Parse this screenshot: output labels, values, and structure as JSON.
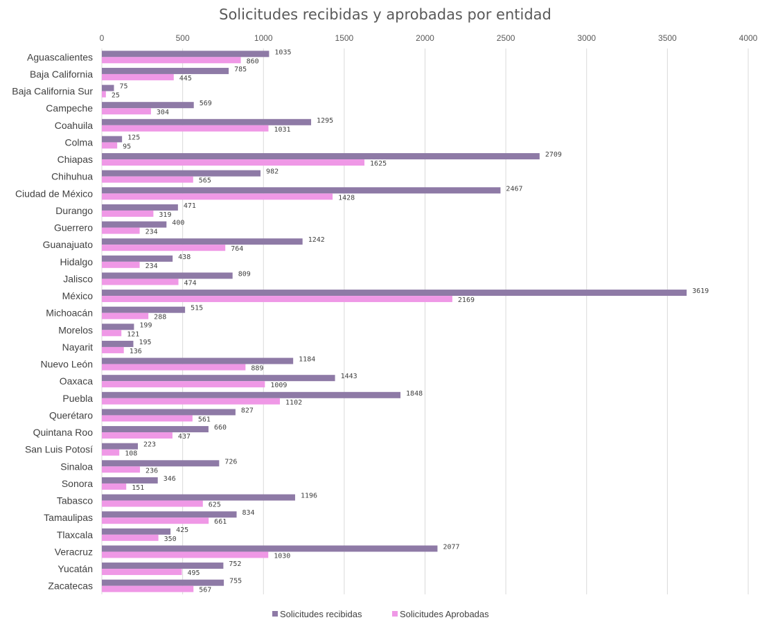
{
  "chart_data": {
    "type": "bar",
    "orientation": "horizontal",
    "title": "Solicitudes recibidas y aprobadas por entidad",
    "xlim": [
      0,
      4000
    ],
    "xticks": [
      0,
      500,
      1000,
      1500,
      2000,
      2500,
      3000,
      3500,
      4000
    ],
    "grid": true,
    "legend_position": "bottom",
    "categories": [
      "Aguascalientes",
      "Baja California",
      "Baja California Sur",
      "Campeche",
      "Coahuila",
      "Colma",
      "Chiapas",
      "Chihuhua",
      "Ciudad de México",
      "Durango",
      "Guerrero",
      "Guanajuato",
      "Hidalgo",
      "Jalisco",
      "México",
      "Michoacán",
      "Morelos",
      "Nayarit",
      "Nuevo León",
      "Oaxaca",
      "Puebla",
      "Querétaro",
      "Quintana Roo",
      "San Luis Potosí",
      "Sinaloa",
      "Sonora",
      "Tabasco",
      "Tamaulipas",
      "Tlaxcala",
      "Veracruz",
      "Yucatán",
      "Zacatecas"
    ],
    "series": [
      {
        "name": "Solicitudes recibidas",
        "color": "#8e7aa6",
        "values": [
          1035,
          785,
          75,
          569,
          1295,
          125,
          2709,
          982,
          2467,
          471,
          400,
          1242,
          438,
          809,
          3619,
          515,
          199,
          195,
          1184,
          1443,
          1848,
          827,
          660,
          223,
          726,
          346,
          1196,
          834,
          425,
          2077,
          752,
          755
        ]
      },
      {
        "name": "Solicitudes Aprobadas",
        "color": "#ef98e6",
        "values": [
          860,
          445,
          25,
          304,
          1031,
          95,
          1625,
          565,
          1428,
          319,
          234,
          764,
          234,
          474,
          2169,
          288,
          121,
          136,
          889,
          1009,
          1102,
          561,
          437,
          108,
          236,
          151,
          625,
          661,
          350,
          1030,
          495,
          567
        ]
      }
    ]
  }
}
